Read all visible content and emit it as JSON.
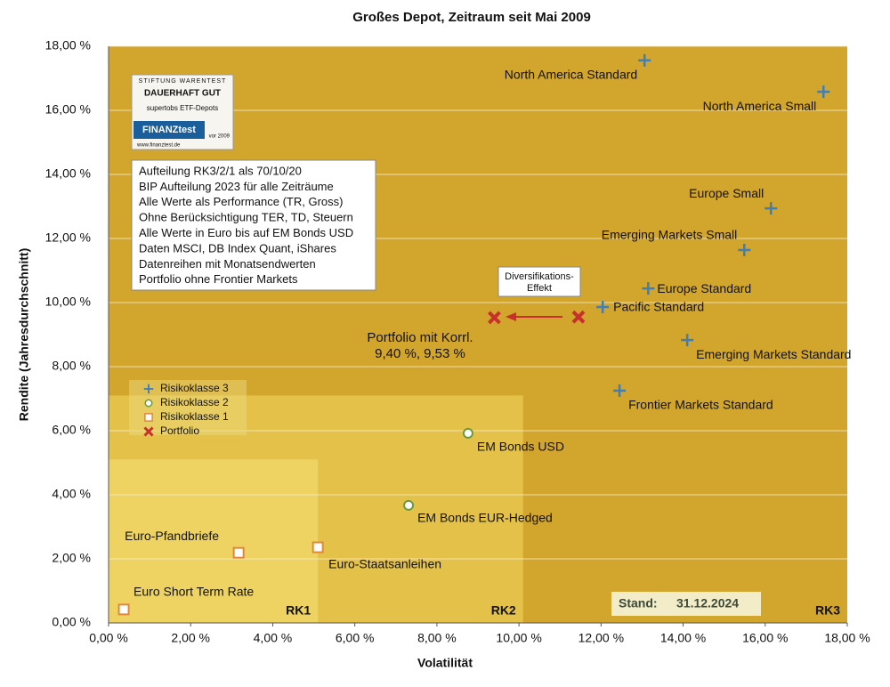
{
  "chart_data": {
    "type": "scatter",
    "title": "Großes Depot, Zeitraum seit Mai 2009",
    "xlabel": "Volatilität",
    "ylabel": "Rendite (Jahresdurchschnitt)",
    "xlim": [
      0,
      18
    ],
    "ylim": [
      0,
      18
    ],
    "xticks": [
      {
        "value": 0,
        "label": "0,00 %"
      },
      {
        "value": 2,
        "label": "2,00 %"
      },
      {
        "value": 4,
        "label": "4,00 %"
      },
      {
        "value": 6,
        "label": "6,00 %"
      },
      {
        "value": 8,
        "label": "8,00 %"
      },
      {
        "value": 10,
        "label": "10,00 %"
      },
      {
        "value": 12,
        "label": "12,00 %"
      },
      {
        "value": 14,
        "label": "14,00 %"
      },
      {
        "value": 16,
        "label": "16,00 %"
      },
      {
        "value": 18,
        "label": "18,00 %"
      }
    ],
    "yticks": [
      {
        "value": 0,
        "label": "0,00 %"
      },
      {
        "value": 2,
        "label": "2,00 %"
      },
      {
        "value": 4,
        "label": "4,00 %"
      },
      {
        "value": 6,
        "label": "6,00 %"
      },
      {
        "value": 8,
        "label": "8,00 %"
      },
      {
        "value": 10,
        "label": "10,00 %"
      },
      {
        "value": 12,
        "label": "12,00 %"
      },
      {
        "value": 14,
        "label": "14,00 %"
      },
      {
        "value": 16,
        "label": "16,00 %"
      },
      {
        "value": 18,
        "label": "18,00 %"
      }
    ],
    "grid": true,
    "zones": [
      {
        "label": "RK3",
        "xmax": 18,
        "ymax": 18,
        "color": "#d2a52d"
      },
      {
        "label": "RK2",
        "xmax": 10.1,
        "ymax": 7.1,
        "color": "#e4c24a"
      },
      {
        "label": "RK1",
        "xmax": 5.1,
        "ymax": 5.1,
        "color": "#eed362"
      }
    ],
    "series": [
      {
        "name": "Risikoklasse 3",
        "marker": "plus",
        "color": "#3f7fb6",
        "x": [
          13.06,
          17.42,
          16.14,
          15.49,
          13.15,
          12.04,
          14.1,
          12.45
        ],
        "values": [
          17.56,
          16.58,
          12.94,
          11.64,
          10.44,
          9.86,
          8.83,
          7.25
        ],
        "labels": [
          "North America Standard",
          "North America Small",
          "Europe Small",
          "Emerging Markets Small",
          "Europe Standard",
          "Pacific Standard",
          "Emerging Markets Standard",
          "Frontier Markets Standard"
        ]
      },
      {
        "name": "Risikoklasse 2",
        "marker": "circle",
        "color": "#6a9a3a",
        "x": [
          8.76,
          7.31
        ],
        "values": [
          5.92,
          3.67
        ],
        "labels": [
          "EM Bonds USD",
          "EM Bonds EUR-Hedged"
        ]
      },
      {
        "name": "Risikoklasse 1",
        "marker": "square",
        "color": "#e0883a",
        "x": [
          3.17,
          5.1,
          0.37
        ],
        "values": [
          2.19,
          2.36,
          0.42
        ],
        "labels": [
          "Euro-Pfandbriefe",
          "Euro-Staatsanleihen",
          "Euro Short Term Rate"
        ]
      },
      {
        "name": "Portfolio",
        "marker": "cross",
        "color": "#c8302c",
        "x": [
          9.4,
          11.45
        ],
        "values": [
          9.53,
          9.55
        ]
      }
    ],
    "portfolio_annotation": [
      "Portfolio mit Korrl.",
      "9,40 %, 9,53 %"
    ],
    "diversification_note": [
      "Diversifikations-",
      "Effekt"
    ],
    "notes": [
      "Aufteilung RK3/2/1 als 70/10/20",
      "BIP Aufteilung 2023 für alle Zeiträume",
      "Alle Werte als Performance (TR, Gross)",
      "Ohne Berücksichtigung TER, TD, Steuern",
      "Alle Werte in Euro bis auf EM Bonds USD",
      "Daten MSCI, DB Index Quant, iShares",
      "Datenreihen mit Monatsendwerten",
      "Portfolio ohne Frontier Markets"
    ],
    "badge": {
      "top": "STIFTUNG WARENTEST",
      "rating": "DAUERHAFT GUT",
      "subject": "supertobs ETF-Depots",
      "brand": "FINANZtest",
      "url": "www.finanztest.de",
      "date": "vor 2009"
    },
    "stand": {
      "label": "Stand:",
      "date": "31.12.2024"
    }
  }
}
